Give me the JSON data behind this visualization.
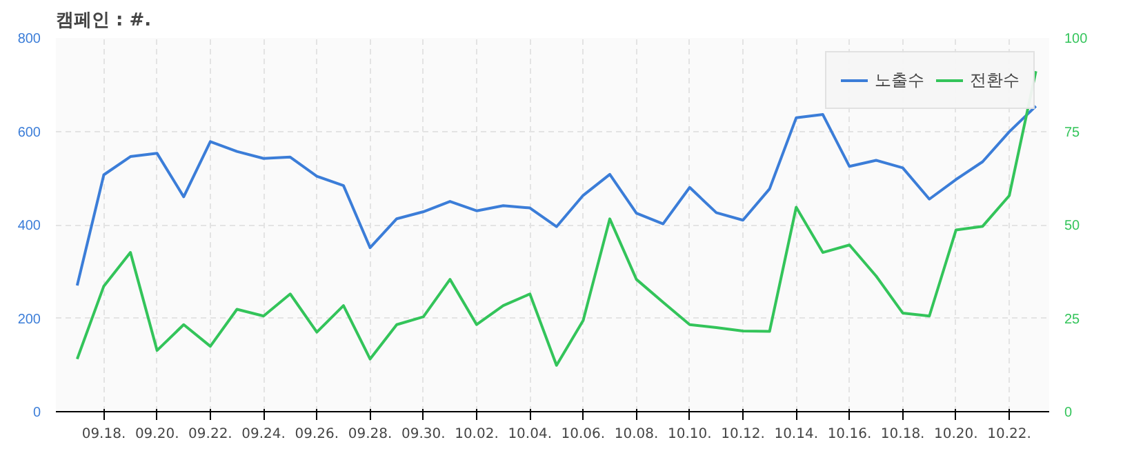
{
  "chart_data": {
    "type": "line",
    "title": "캠페인 : #.",
    "categories": [
      null,
      "09.18.",
      null,
      "09.20.",
      null,
      "09.22.",
      null,
      "09.24.",
      null,
      "09.26.",
      null,
      "09.28.",
      null,
      "09.30.",
      null,
      "10.02.",
      null,
      "10.04.",
      null,
      "10.06.",
      null,
      "10.08.",
      null,
      "10.10.",
      null,
      "10.12.",
      null,
      "10.14.",
      null,
      "10.16.",
      null,
      "10.18.",
      null,
      "10.20.",
      null,
      "10.22.",
      null
    ],
    "series": [
      {
        "name": "노출수",
        "color": "#3b7dd8",
        "values": [
          270,
          507,
          546,
          553,
          460,
          578,
          557,
          542,
          545,
          504,
          484,
          351,
          413,
          428,
          450,
          430,
          441,
          436,
          396,
          463,
          508,
          425,
          402,
          480,
          426,
          410,
          477,
          629,
          636,
          525,
          538,
          522,
          455,
          497,
          535,
          599,
          654
        ]
      },
      {
        "name": "전환수",
        "color": "#33c45a",
        "axis": "y2",
        "values": [
          14.1,
          33.6,
          42.6,
          16.4,
          23.3,
          17.5,
          27.4,
          25.6,
          31.5,
          21.3,
          28.4,
          14.1,
          23.3,
          25.4,
          35.4,
          23.3,
          28.4,
          31.5,
          12.4,
          24.4,
          51.6,
          35.4,
          29.3,
          23.3,
          22.5,
          21.6,
          21.5,
          54.7,
          42.6,
          44.6,
          36.3,
          26.4,
          25.6,
          48.6,
          49.6,
          57.8,
          91.1
        ]
      }
    ],
    "ylim": [
      0,
      800
    ],
    "yticks": [
      0,
      200,
      400,
      600,
      800
    ],
    "y2lim": [
      0,
      100
    ],
    "y2ticks": [
      0,
      25,
      50,
      75,
      100
    ],
    "grid": true,
    "legend": "top right",
    "line_style": "solid"
  }
}
